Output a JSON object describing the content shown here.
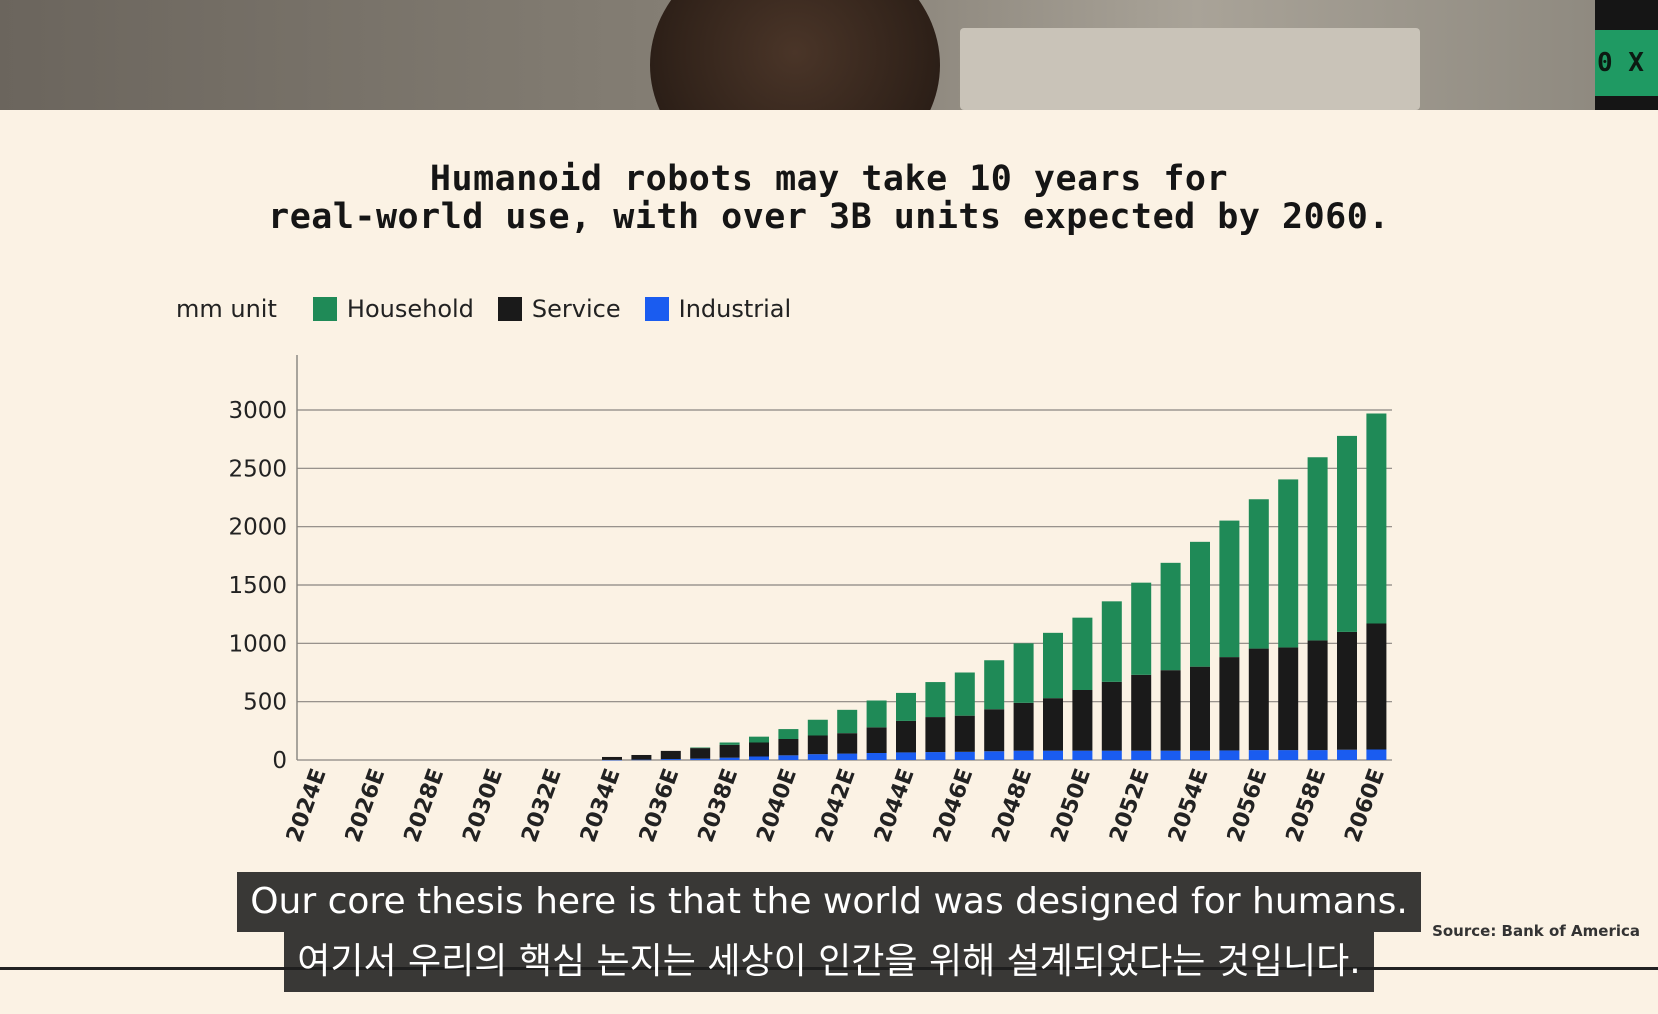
{
  "video": {
    "badge_text": "0 X"
  },
  "slide": {
    "title_line1": "Humanoid robots may take 10 years for",
    "title_line2": "real-world use, with over 3B units expected by 2060.",
    "source": "Source: Bank of America"
  },
  "legend": {
    "unit_label": "mm unit",
    "items": [
      {
        "label": "Household",
        "color": "#1f8a57"
      },
      {
        "label": "Service",
        "color": "#1a1a1a"
      },
      {
        "label": "Industrial",
        "color": "#1a5cf0"
      }
    ]
  },
  "subtitles": {
    "english": "Our core thesis here is that the world was designed for humans.",
    "korean": "여기서 우리의 핵심 논지는 세상이 인간을 위해 설계되었다는 것입니다."
  },
  "chart_data": {
    "type": "bar",
    "stacked": true,
    "title": "Humanoid robots may take 10 years for real-world use, with over 3B units expected by 2060.",
    "ylabel": "mm unit",
    "xlabel": "",
    "ylim": [
      0,
      3000
    ],
    "yticks": [
      0,
      500,
      1000,
      1500,
      2000,
      2500,
      3000
    ],
    "grid": true,
    "legend_position": "top-left",
    "categories": [
      "2024E",
      "2025E",
      "2026E",
      "2027E",
      "2028E",
      "2029E",
      "2030E",
      "2031E",
      "2032E",
      "2033E",
      "2034E",
      "2035E",
      "2036E",
      "2037E",
      "2038E",
      "2039E",
      "2040E",
      "2041E",
      "2042E",
      "2043E",
      "2044E",
      "2045E",
      "2046E",
      "2047E",
      "2048E",
      "2049E",
      "2050E",
      "2051E",
      "2052E",
      "2053E",
      "2054E",
      "2055E",
      "2056E",
      "2057E",
      "2058E",
      "2059E",
      "2060E"
    ],
    "tick_labels": [
      "2024E",
      "2026E",
      "2028E",
      "2030E",
      "2032E",
      "2034E",
      "2036E",
      "2038E",
      "2040E",
      "2042E",
      "2044E",
      "2046E",
      "2048E",
      "2050E",
      "2052E",
      "2054E",
      "2056E",
      "2058E",
      "2060E"
    ],
    "series": [
      {
        "name": "Industrial",
        "color": "#1a5cf0",
        "values": [
          0,
          0,
          0,
          0,
          0,
          0,
          0,
          0,
          0,
          0,
          1,
          3,
          8,
          12,
          20,
          30,
          40,
          50,
          55,
          60,
          65,
          68,
          70,
          75,
          80,
          80,
          80,
          80,
          80,
          80,
          80,
          82,
          85,
          85,
          85,
          88,
          90
        ]
      },
      {
        "name": "Service",
        "color": "#1a1a1a",
        "values": [
          0,
          0,
          0,
          0,
          0,
          0,
          0,
          0,
          0,
          0,
          25,
          40,
          70,
          90,
          110,
          120,
          140,
          160,
          175,
          220,
          270,
          300,
          310,
          360,
          410,
          450,
          520,
          590,
          650,
          690,
          720,
          800,
          870,
          880,
          940,
          1010,
          1080
        ]
      },
      {
        "name": "Household",
        "color": "#1f8a57",
        "values": [
          0,
          0,
          0,
          0,
          0,
          0,
          0,
          0,
          0,
          0,
          0,
          0,
          0,
          5,
          20,
          50,
          85,
          135,
          200,
          230,
          240,
          300,
          370,
          420,
          510,
          560,
          620,
          690,
          790,
          920,
          1070,
          1170,
          1280,
          1440,
          1570,
          1680,
          1800
        ]
      }
    ]
  }
}
